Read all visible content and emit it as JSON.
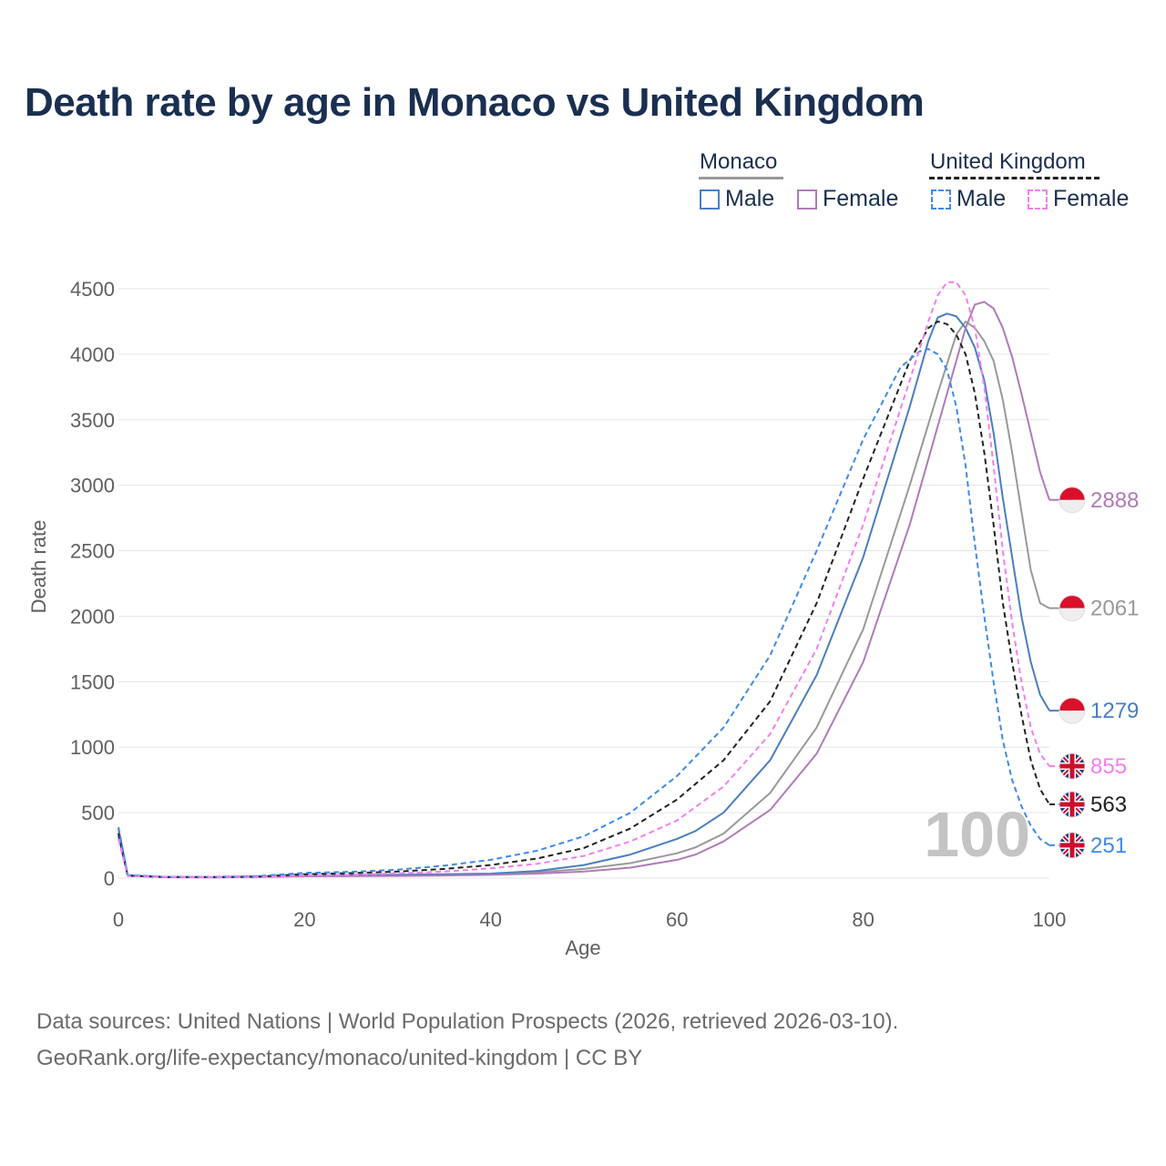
{
  "title": "Death rate by age in Monaco vs United Kingdom",
  "legend": {
    "groups": [
      {
        "name": "Monaco",
        "line_color": "#999999",
        "line_style": "solid",
        "items": [
          {
            "label": "Male",
            "color": "#4a7ec0",
            "style": "solid"
          },
          {
            "label": "Female",
            "color": "#b07ab8",
            "style": "solid"
          }
        ]
      },
      {
        "name": "United Kingdom",
        "line_color": "#222222",
        "line_style": "dashed",
        "items": [
          {
            "label": "Male",
            "color": "#3e8ae8",
            "style": "dashed"
          },
          {
            "label": "Female",
            "color": "#f47ef0",
            "style": "dashed"
          }
        ]
      }
    ]
  },
  "watermark": "100",
  "source": {
    "line1": "Data sources: United Nations | World Population Prospects (2026, retrieved 2026-03-10).",
    "line2": "GeoRank.org/life-expectancy/monaco/united-kingdom | CC BY"
  },
  "chart_data": {
    "type": "line",
    "title": "Death rate by age in Monaco vs United Kingdom",
    "xlabel": "Age",
    "ylabel": "Death rate",
    "xlim": [
      0,
      100
    ],
    "ylim": [
      0,
      4500
    ],
    "xticks": [
      0,
      20,
      40,
      60,
      80,
      100
    ],
    "yticks": [
      0,
      500,
      1000,
      1500,
      2000,
      2500,
      3000,
      3500,
      4000,
      4500
    ],
    "grid": true,
    "series": [
      {
        "name": "Monaco Total",
        "color": "#999999",
        "dash": "solid",
        "end_label": "2061",
        "flag": "monaco",
        "points": [
          [
            0,
            350
          ],
          [
            1,
            20
          ],
          [
            5,
            8
          ],
          [
            10,
            6
          ],
          [
            15,
            10
          ],
          [
            20,
            18
          ],
          [
            25,
            20
          ],
          [
            30,
            22
          ],
          [
            35,
            25
          ],
          [
            40,
            30
          ],
          [
            45,
            45
          ],
          [
            50,
            70
          ],
          [
            55,
            115
          ],
          [
            60,
            190
          ],
          [
            62,
            235
          ],
          [
            65,
            340
          ],
          [
            70,
            650
          ],
          [
            75,
            1150
          ],
          [
            80,
            1900
          ],
          [
            85,
            3000
          ],
          [
            88,
            3700
          ],
          [
            90,
            4150
          ],
          [
            91,
            4250
          ],
          [
            92,
            4200
          ],
          [
            93,
            4100
          ],
          [
            94,
            3950
          ],
          [
            95,
            3650
          ],
          [
            96,
            3250
          ],
          [
            97,
            2800
          ],
          [
            98,
            2350
          ],
          [
            99,
            2100
          ],
          [
            100,
            2061
          ]
        ]
      },
      {
        "name": "Monaco Male",
        "color": "#4a7ec0",
        "dash": "solid",
        "end_label": "1279",
        "flag": "monaco",
        "points": [
          [
            0,
            380
          ],
          [
            1,
            22
          ],
          [
            5,
            8
          ],
          [
            10,
            7
          ],
          [
            15,
            12
          ],
          [
            20,
            22
          ],
          [
            25,
            24
          ],
          [
            30,
            26
          ],
          [
            35,
            30
          ],
          [
            40,
            35
          ],
          [
            45,
            55
          ],
          [
            50,
            100
          ],
          [
            55,
            180
          ],
          [
            60,
            300
          ],
          [
            62,
            360
          ],
          [
            65,
            500
          ],
          [
            70,
            900
          ],
          [
            75,
            1550
          ],
          [
            80,
            2450
          ],
          [
            85,
            3600
          ],
          [
            87,
            4100
          ],
          [
            88,
            4280
          ],
          [
            89,
            4310
          ],
          [
            90,
            4290
          ],
          [
            91,
            4200
          ],
          [
            92,
            4050
          ],
          [
            93,
            3800
          ],
          [
            94,
            3400
          ],
          [
            95,
            2900
          ],
          [
            96,
            2450
          ],
          [
            97,
            2000
          ],
          [
            98,
            1650
          ],
          [
            99,
            1400
          ],
          [
            100,
            1279
          ]
        ]
      },
      {
        "name": "Monaco Female",
        "color": "#b07ab8",
        "dash": "solid",
        "end_label": "2888",
        "flag": "monaco",
        "points": [
          [
            0,
            320
          ],
          [
            1,
            18
          ],
          [
            5,
            7
          ],
          [
            10,
            5
          ],
          [
            15,
            8
          ],
          [
            20,
            14
          ],
          [
            25,
            15
          ],
          [
            30,
            17
          ],
          [
            35,
            20
          ],
          [
            40,
            25
          ],
          [
            45,
            35
          ],
          [
            50,
            50
          ],
          [
            55,
            80
          ],
          [
            60,
            140
          ],
          [
            62,
            180
          ],
          [
            65,
            280
          ],
          [
            70,
            520
          ],
          [
            75,
            950
          ],
          [
            80,
            1650
          ],
          [
            85,
            2700
          ],
          [
            88,
            3450
          ],
          [
            90,
            3950
          ],
          [
            91,
            4200
          ],
          [
            92,
            4380
          ],
          [
            93,
            4400
          ],
          [
            94,
            4350
          ],
          [
            95,
            4200
          ],
          [
            96,
            3980
          ],
          [
            97,
            3700
          ],
          [
            98,
            3400
          ],
          [
            99,
            3100
          ],
          [
            100,
            2888
          ]
        ]
      },
      {
        "name": "United Kingdom Total",
        "color": "#222222",
        "dash": "dashed",
        "end_label": "563",
        "flag": "uk",
        "points": [
          [
            0,
            340
          ],
          [
            1,
            18
          ],
          [
            5,
            9
          ],
          [
            10,
            8
          ],
          [
            15,
            12
          ],
          [
            20,
            30
          ],
          [
            25,
            38
          ],
          [
            30,
            50
          ],
          [
            35,
            70
          ],
          [
            40,
            100
          ],
          [
            45,
            150
          ],
          [
            50,
            230
          ],
          [
            55,
            380
          ],
          [
            60,
            600
          ],
          [
            65,
            900
          ],
          [
            70,
            1350
          ],
          [
            75,
            2100
          ],
          [
            80,
            3050
          ],
          [
            85,
            3950
          ],
          [
            87,
            4200
          ],
          [
            88,
            4250
          ],
          [
            89,
            4230
          ],
          [
            90,
            4150
          ],
          [
            91,
            4000
          ],
          [
            92,
            3700
          ],
          [
            93,
            3250
          ],
          [
            94,
            2700
          ],
          [
            95,
            2100
          ],
          [
            96,
            1650
          ],
          [
            97,
            1250
          ],
          [
            98,
            900
          ],
          [
            99,
            680
          ],
          [
            100,
            563
          ]
        ]
      },
      {
        "name": "United Kingdom Male",
        "color": "#3e8ae8",
        "dash": "dashed",
        "end_label": "251",
        "flag": "uk",
        "points": [
          [
            0,
            390
          ],
          [
            1,
            22
          ],
          [
            5,
            10
          ],
          [
            10,
            9
          ],
          [
            15,
            16
          ],
          [
            20,
            40
          ],
          [
            25,
            48
          ],
          [
            30,
            65
          ],
          [
            35,
            95
          ],
          [
            40,
            140
          ],
          [
            45,
            210
          ],
          [
            50,
            320
          ],
          [
            55,
            500
          ],
          [
            60,
            780
          ],
          [
            65,
            1150
          ],
          [
            70,
            1700
          ],
          [
            75,
            2500
          ],
          [
            80,
            3350
          ],
          [
            84,
            3900
          ],
          [
            86,
            4020
          ],
          [
            87,
            4040
          ],
          [
            88,
            4000
          ],
          [
            89,
            3880
          ],
          [
            90,
            3600
          ],
          [
            91,
            3150
          ],
          [
            92,
            2550
          ],
          [
            93,
            2000
          ],
          [
            94,
            1500
          ],
          [
            95,
            1050
          ],
          [
            96,
            750
          ],
          [
            97,
            550
          ],
          [
            98,
            400
          ],
          [
            99,
            300
          ],
          [
            100,
            251
          ]
        ]
      },
      {
        "name": "United Kingdom Female",
        "color": "#f47ef0",
        "dash": "dashed",
        "end_label": "855",
        "flag": "uk",
        "points": [
          [
            0,
            300
          ],
          [
            1,
            15
          ],
          [
            5,
            8
          ],
          [
            10,
            7
          ],
          [
            15,
            9
          ],
          [
            20,
            20
          ],
          [
            25,
            26
          ],
          [
            30,
            36
          ],
          [
            35,
            50
          ],
          [
            40,
            75
          ],
          [
            45,
            110
          ],
          [
            50,
            170
          ],
          [
            55,
            280
          ],
          [
            60,
            440
          ],
          [
            65,
            700
          ],
          [
            70,
            1100
          ],
          [
            75,
            1750
          ],
          [
            80,
            2700
          ],
          [
            85,
            3800
          ],
          [
            87,
            4250
          ],
          [
            88,
            4450
          ],
          [
            89,
            4550
          ],
          [
            90,
            4550
          ],
          [
            91,
            4450
          ],
          [
            92,
            4200
          ],
          [
            93,
            3750
          ],
          [
            94,
            3150
          ],
          [
            95,
            2500
          ],
          [
            96,
            1950
          ],
          [
            97,
            1500
          ],
          [
            98,
            1150
          ],
          [
            99,
            950
          ],
          [
            100,
            855
          ]
        ]
      }
    ]
  }
}
